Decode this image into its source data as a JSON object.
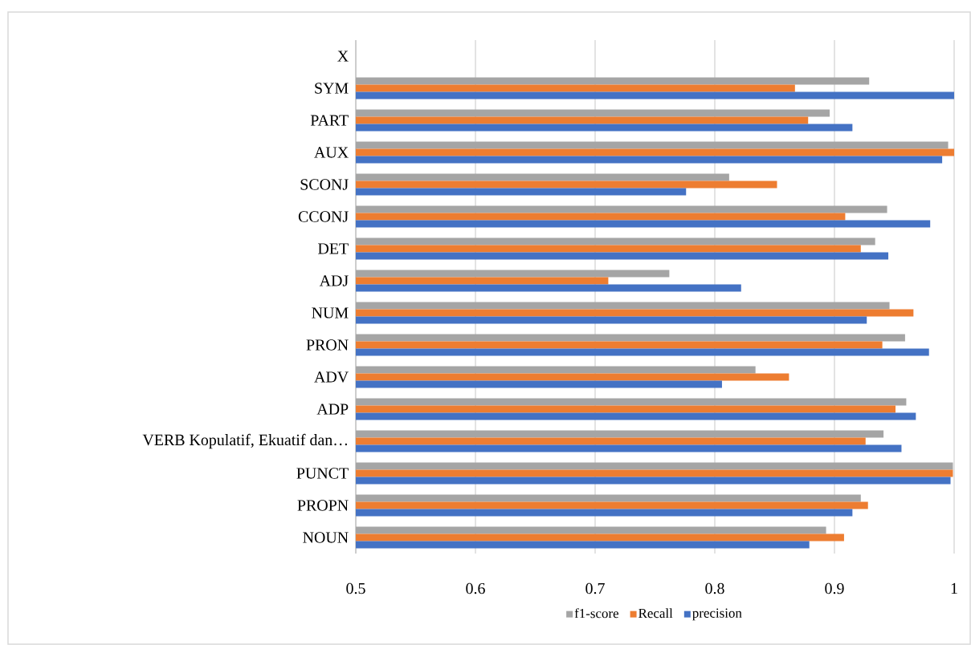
{
  "chart_data": {
    "type": "bar",
    "orientation": "horizontal",
    "categories": [
      "X",
      "SYM",
      "PART",
      "AUX",
      "SCONJ",
      "CCONJ",
      "DET",
      "ADJ",
      "NUM",
      "PRON",
      "ADV",
      "ADP",
      "VERB Kopulatif, Ekuatif dan…",
      "PUNCT",
      "PROPN",
      "NOUN"
    ],
    "series": [
      {
        "name": "f1-score",
        "color": "#a5a5a5",
        "values": [
          null,
          0.929,
          0.896,
          0.995,
          0.812,
          0.944,
          0.934,
          0.762,
          0.946,
          0.959,
          0.834,
          0.96,
          0.941,
          0.999,
          0.922,
          0.893
        ]
      },
      {
        "name": "Recall",
        "color": "#ed7d31",
        "values": [
          null,
          0.867,
          0.878,
          1.0,
          0.852,
          0.909,
          0.922,
          0.711,
          0.966,
          0.94,
          0.862,
          0.951,
          0.926,
          0.999,
          0.928,
          0.908
        ]
      },
      {
        "name": "precision",
        "color": "#4472c4",
        "values": [
          null,
          1.0,
          0.915,
          0.99,
          0.776,
          0.98,
          0.945,
          0.822,
          0.927,
          0.979,
          0.806,
          0.968,
          0.956,
          0.997,
          0.915,
          0.879
        ]
      }
    ],
    "xlim": [
      0.5,
      1
    ],
    "xticks": [
      0.5,
      0.6,
      0.7,
      0.8,
      0.9,
      1
    ],
    "grid": "x",
    "legend": "bottom"
  }
}
